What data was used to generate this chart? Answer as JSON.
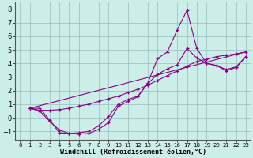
{
  "xlabel": "Windchill (Refroidissement éolien,°C)",
  "bg_color": "#cceee8",
  "line_color": "#880088",
  "grid_color": "#99bbbb",
  "xlim": [
    -0.5,
    23.5
  ],
  "ylim": [
    -1.6,
    8.5
  ],
  "xticks": [
    0,
    1,
    2,
    3,
    4,
    5,
    6,
    7,
    8,
    9,
    10,
    11,
    12,
    13,
    14,
    15,
    16,
    17,
    18,
    19,
    20,
    21,
    22,
    23
  ],
  "yticks": [
    -1,
    0,
    1,
    2,
    3,
    4,
    5,
    6,
    7,
    8
  ],
  "line1_x": [
    1,
    2,
    3,
    4,
    5,
    6,
    7,
    8,
    9,
    10,
    11,
    12,
    13,
    14,
    15,
    16,
    17,
    18,
    19,
    20,
    21,
    22,
    23
  ],
  "line1_y": [
    0.7,
    0.5,
    -0.25,
    -0.9,
    -1.15,
    -1.2,
    -1.15,
    -0.85,
    -0.35,
    0.85,
    1.2,
    1.55,
    2.55,
    4.35,
    4.85,
    6.45,
    7.9,
    5.1,
    4.0,
    3.85,
    3.45,
    3.7,
    4.5
  ],
  "line2_x": [
    1,
    2,
    3,
    4,
    5,
    6,
    7,
    8,
    9,
    10,
    11,
    12,
    13,
    14,
    15,
    16,
    17,
    18,
    19,
    20,
    21,
    22,
    23
  ],
  "line2_y": [
    0.7,
    0.55,
    0.55,
    0.6,
    0.7,
    0.85,
    1.0,
    1.2,
    1.4,
    1.6,
    1.85,
    2.1,
    2.4,
    2.75,
    3.1,
    3.45,
    3.8,
    4.15,
    4.3,
    4.5,
    4.6,
    4.7,
    4.85
  ],
  "line3_x": [
    1,
    2,
    3,
    4,
    5,
    6,
    7,
    8,
    9,
    10,
    11,
    12,
    13,
    14,
    15,
    16,
    17,
    18,
    19,
    20,
    21,
    22,
    23
  ],
  "line3_y": [
    0.7,
    0.7,
    -0.15,
    -1.1,
    -1.15,
    -1.1,
    -1.0,
    -0.6,
    0.1,
    1.0,
    1.35,
    1.6,
    2.5,
    3.2,
    3.6,
    3.9,
    5.1,
    4.4,
    4.0,
    3.85,
    3.55,
    3.75,
    4.5
  ],
  "line4_x": [
    1,
    23
  ],
  "line4_y": [
    0.7,
    4.85
  ]
}
